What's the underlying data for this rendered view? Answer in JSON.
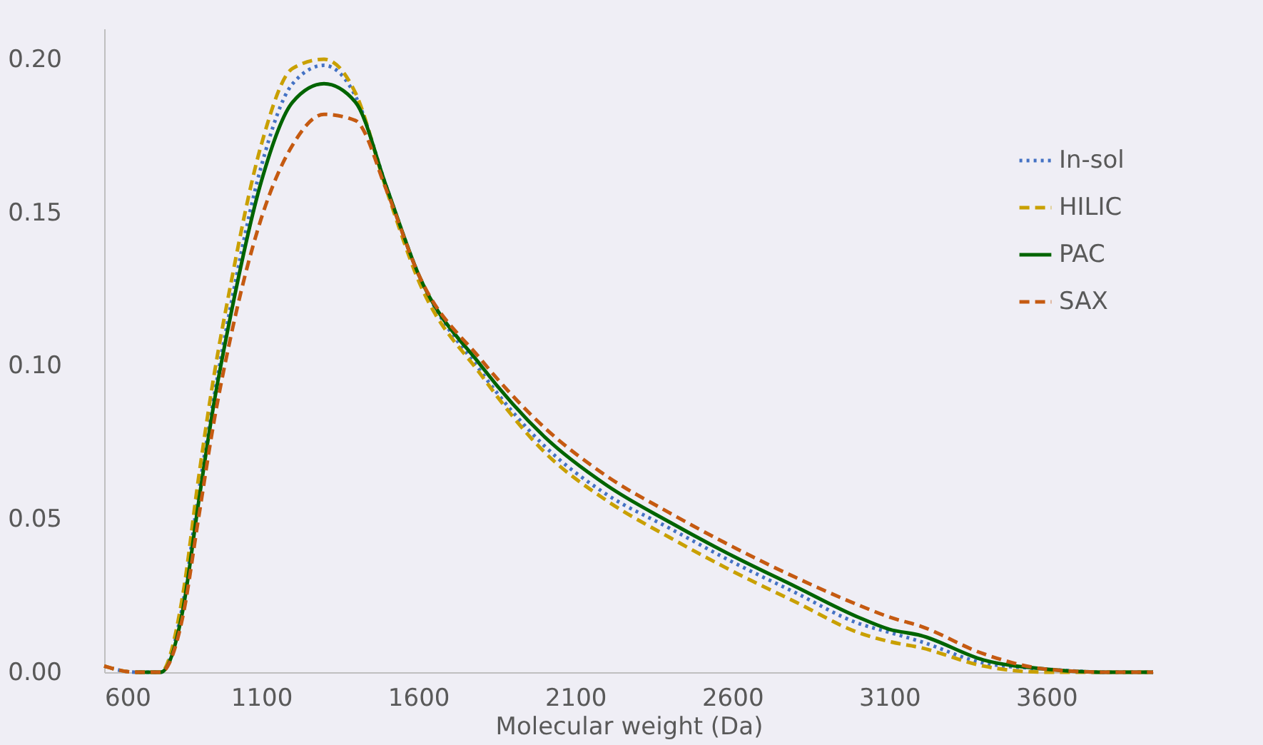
{
  "chart_data": {
    "type": "line",
    "xlabel": "Molecular weight (Da)",
    "x": [
      600,
      700,
      780,
      850,
      900,
      950,
      1000,
      1100,
      1200,
      1300,
      1400,
      1500,
      1600,
      1800,
      2000,
      2200,
      2400,
      2600,
      2800,
      3000,
      3100,
      3200,
      3400,
      3600,
      3800,
      3940
    ],
    "series": [
      {
        "name": "In-sol",
        "color": "#4472c4",
        "line_style": "dotted",
        "values": [
          0.002,
          0,
          0,
          0.022,
          0.058,
          0.09,
          0.118,
          0.165,
          0.192,
          0.198,
          0.188,
          0.158,
          0.13,
          0.098,
          0.074,
          0.058,
          0.047,
          0.036,
          0.026,
          0.016,
          0.013,
          0.01,
          0.003,
          0.001,
          0,
          0
        ]
      },
      {
        "name": "HILIC",
        "color": "#c9a000",
        "line_style": "dashed",
        "values": [
          0.002,
          0,
          0,
          0.025,
          0.063,
          0.097,
          0.125,
          0.172,
          0.197,
          0.2,
          0.189,
          0.157,
          0.128,
          0.097,
          0.072,
          0.056,
          0.044,
          0.033,
          0.023,
          0.013,
          0.01,
          0.008,
          0.002,
          0,
          0,
          0
        ]
      },
      {
        "name": "PAC",
        "color": "#006400",
        "line_style": "solid",
        "values": [
          null,
          0,
          0,
          0.02,
          0.055,
          0.088,
          0.115,
          0.16,
          0.186,
          0.192,
          0.186,
          0.158,
          0.13,
          0.1,
          0.077,
          0.061,
          0.049,
          0.038,
          0.028,
          0.018,
          0.014,
          0.012,
          0.004,
          0.001,
          0,
          0
        ]
      },
      {
        "name": "SAX",
        "color": "#c55a11",
        "line_style": "dashed",
        "values": [
          0.002,
          0,
          0,
          0.018,
          0.05,
          0.082,
          0.108,
          0.148,
          0.172,
          0.182,
          0.18,
          0.157,
          0.13,
          0.102,
          0.08,
          0.064,
          0.052,
          0.041,
          0.031,
          0.022,
          0.018,
          0.015,
          0.006,
          0.001,
          0,
          0
        ]
      }
    ],
    "xlim": [
      600,
      3940
    ],
    "xticks": [
      600,
      1100,
      1600,
      2100,
      2600,
      3100,
      3600
    ],
    "ylim": [
      0,
      0.21
    ],
    "yticks": [
      {
        "value": 0,
        "label": "0.00"
      },
      {
        "value": 0.05,
        "label": "0.05"
      },
      {
        "value": 0.1,
        "label": "0.10"
      },
      {
        "value": 0.15,
        "label": "0.15"
      },
      {
        "value": 0.2,
        "label": "0.20"
      }
    ],
    "grid": false,
    "legend": "right",
    "marker": "none"
  }
}
